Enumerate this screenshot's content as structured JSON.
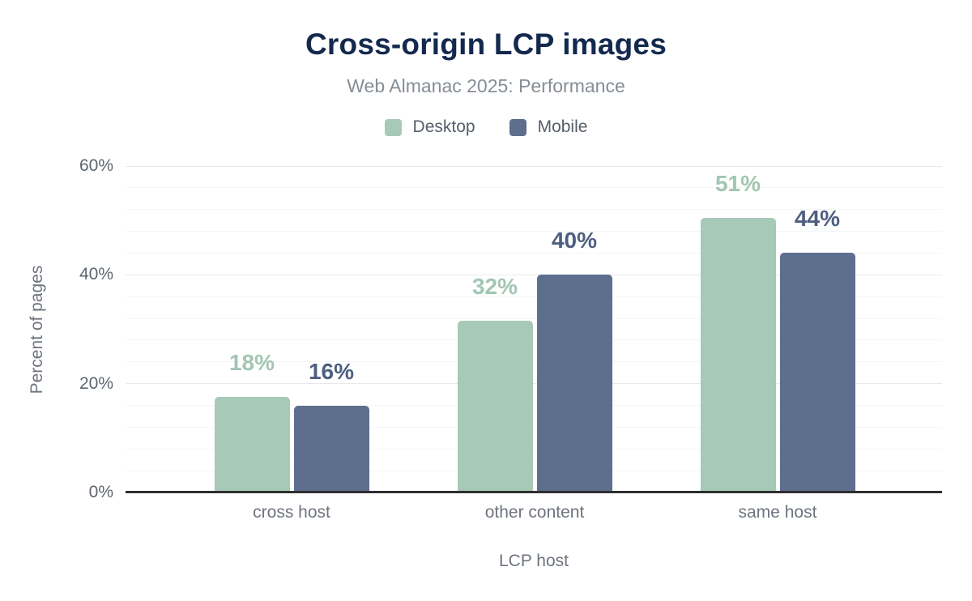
{
  "title": "Cross-origin LCP images",
  "subtitle": "Web Almanac 2025: Performance",
  "colors": {
    "title": "#13294e",
    "subtitle": "#868d96",
    "legend_text": "#565e69",
    "axis_text": "#6e747e",
    "tick_text": "#5d6670",
    "desktop_bar": "#a7c9b7",
    "mobile_bar": "#5e6e8d",
    "desktop_label": "#a2c6b2",
    "mobile_label": "#4d5f80",
    "grid_major": "#e7e9ea",
    "grid_minor": "#f4f5f6",
    "axis_line": "#2f2f2f"
  },
  "chart_data": {
    "type": "bar",
    "title": "Cross-origin LCP images",
    "subtitle": "Web Almanac 2025: Performance",
    "categories": [
      "cross host",
      "other content",
      "same host"
    ],
    "series": [
      {
        "name": "Desktop",
        "values": [
          18,
          32,
          51
        ],
        "labels": [
          "18%",
          "32%",
          "51%"
        ],
        "render_pct": [
          17.5,
          31.5,
          50.5
        ],
        "color": "#a7c9b7",
        "label_color": "#a2c6b2"
      },
      {
        "name": "Mobile",
        "values": [
          16,
          40,
          44
        ],
        "labels": [
          "16%",
          "40%",
          "44%"
        ],
        "render_pct": [
          16,
          40,
          44
        ],
        "color": "#5e6e8d",
        "label_color": "#4d5f80"
      }
    ],
    "xlabel": "LCP host",
    "ylabel": "Percent of pages",
    "ylim": [
      0,
      60
    ],
    "yticks": [
      {
        "pct": 0,
        "label": "0%"
      },
      {
        "pct": 20,
        "label": "20%"
      },
      {
        "pct": 40,
        "label": "40%"
      },
      {
        "pct": 60,
        "label": "60%"
      }
    ],
    "minor_grid_step_pct": 4,
    "grid": "on",
    "legend_position": "top"
  }
}
